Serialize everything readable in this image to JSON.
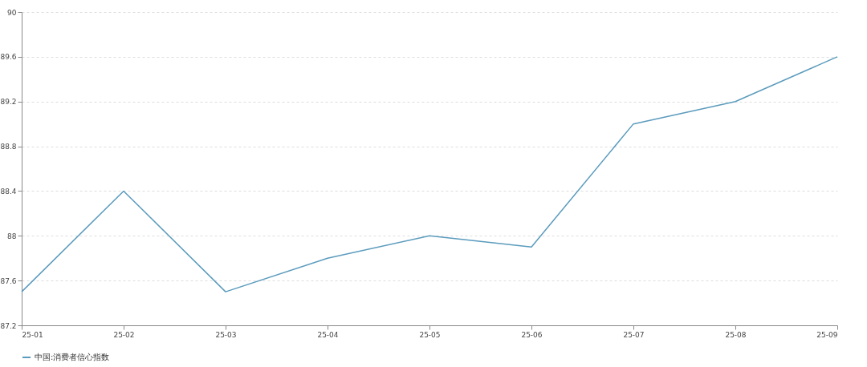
{
  "chart_data": {
    "type": "line",
    "categories": [
      "25-01",
      "25-02",
      "25-03",
      "25-04",
      "25-05",
      "25-06",
      "25-07",
      "25-08",
      "25-09"
    ],
    "series": [
      {
        "name": "中国:消费者信心指数",
        "color": "#5b9bbd",
        "values": [
          87.5,
          88.4,
          87.5,
          87.8,
          88.0,
          87.9,
          89.0,
          89.2,
          89.6
        ]
      }
    ],
    "ylim": [
      87.2,
      90
    ],
    "yticks": [
      87.2,
      87.6,
      88,
      88.4,
      88.8,
      89.2,
      89.6,
      90
    ],
    "grid": "y",
    "legend": "bottom",
    "marker": "none",
    "line_style": "solid"
  }
}
